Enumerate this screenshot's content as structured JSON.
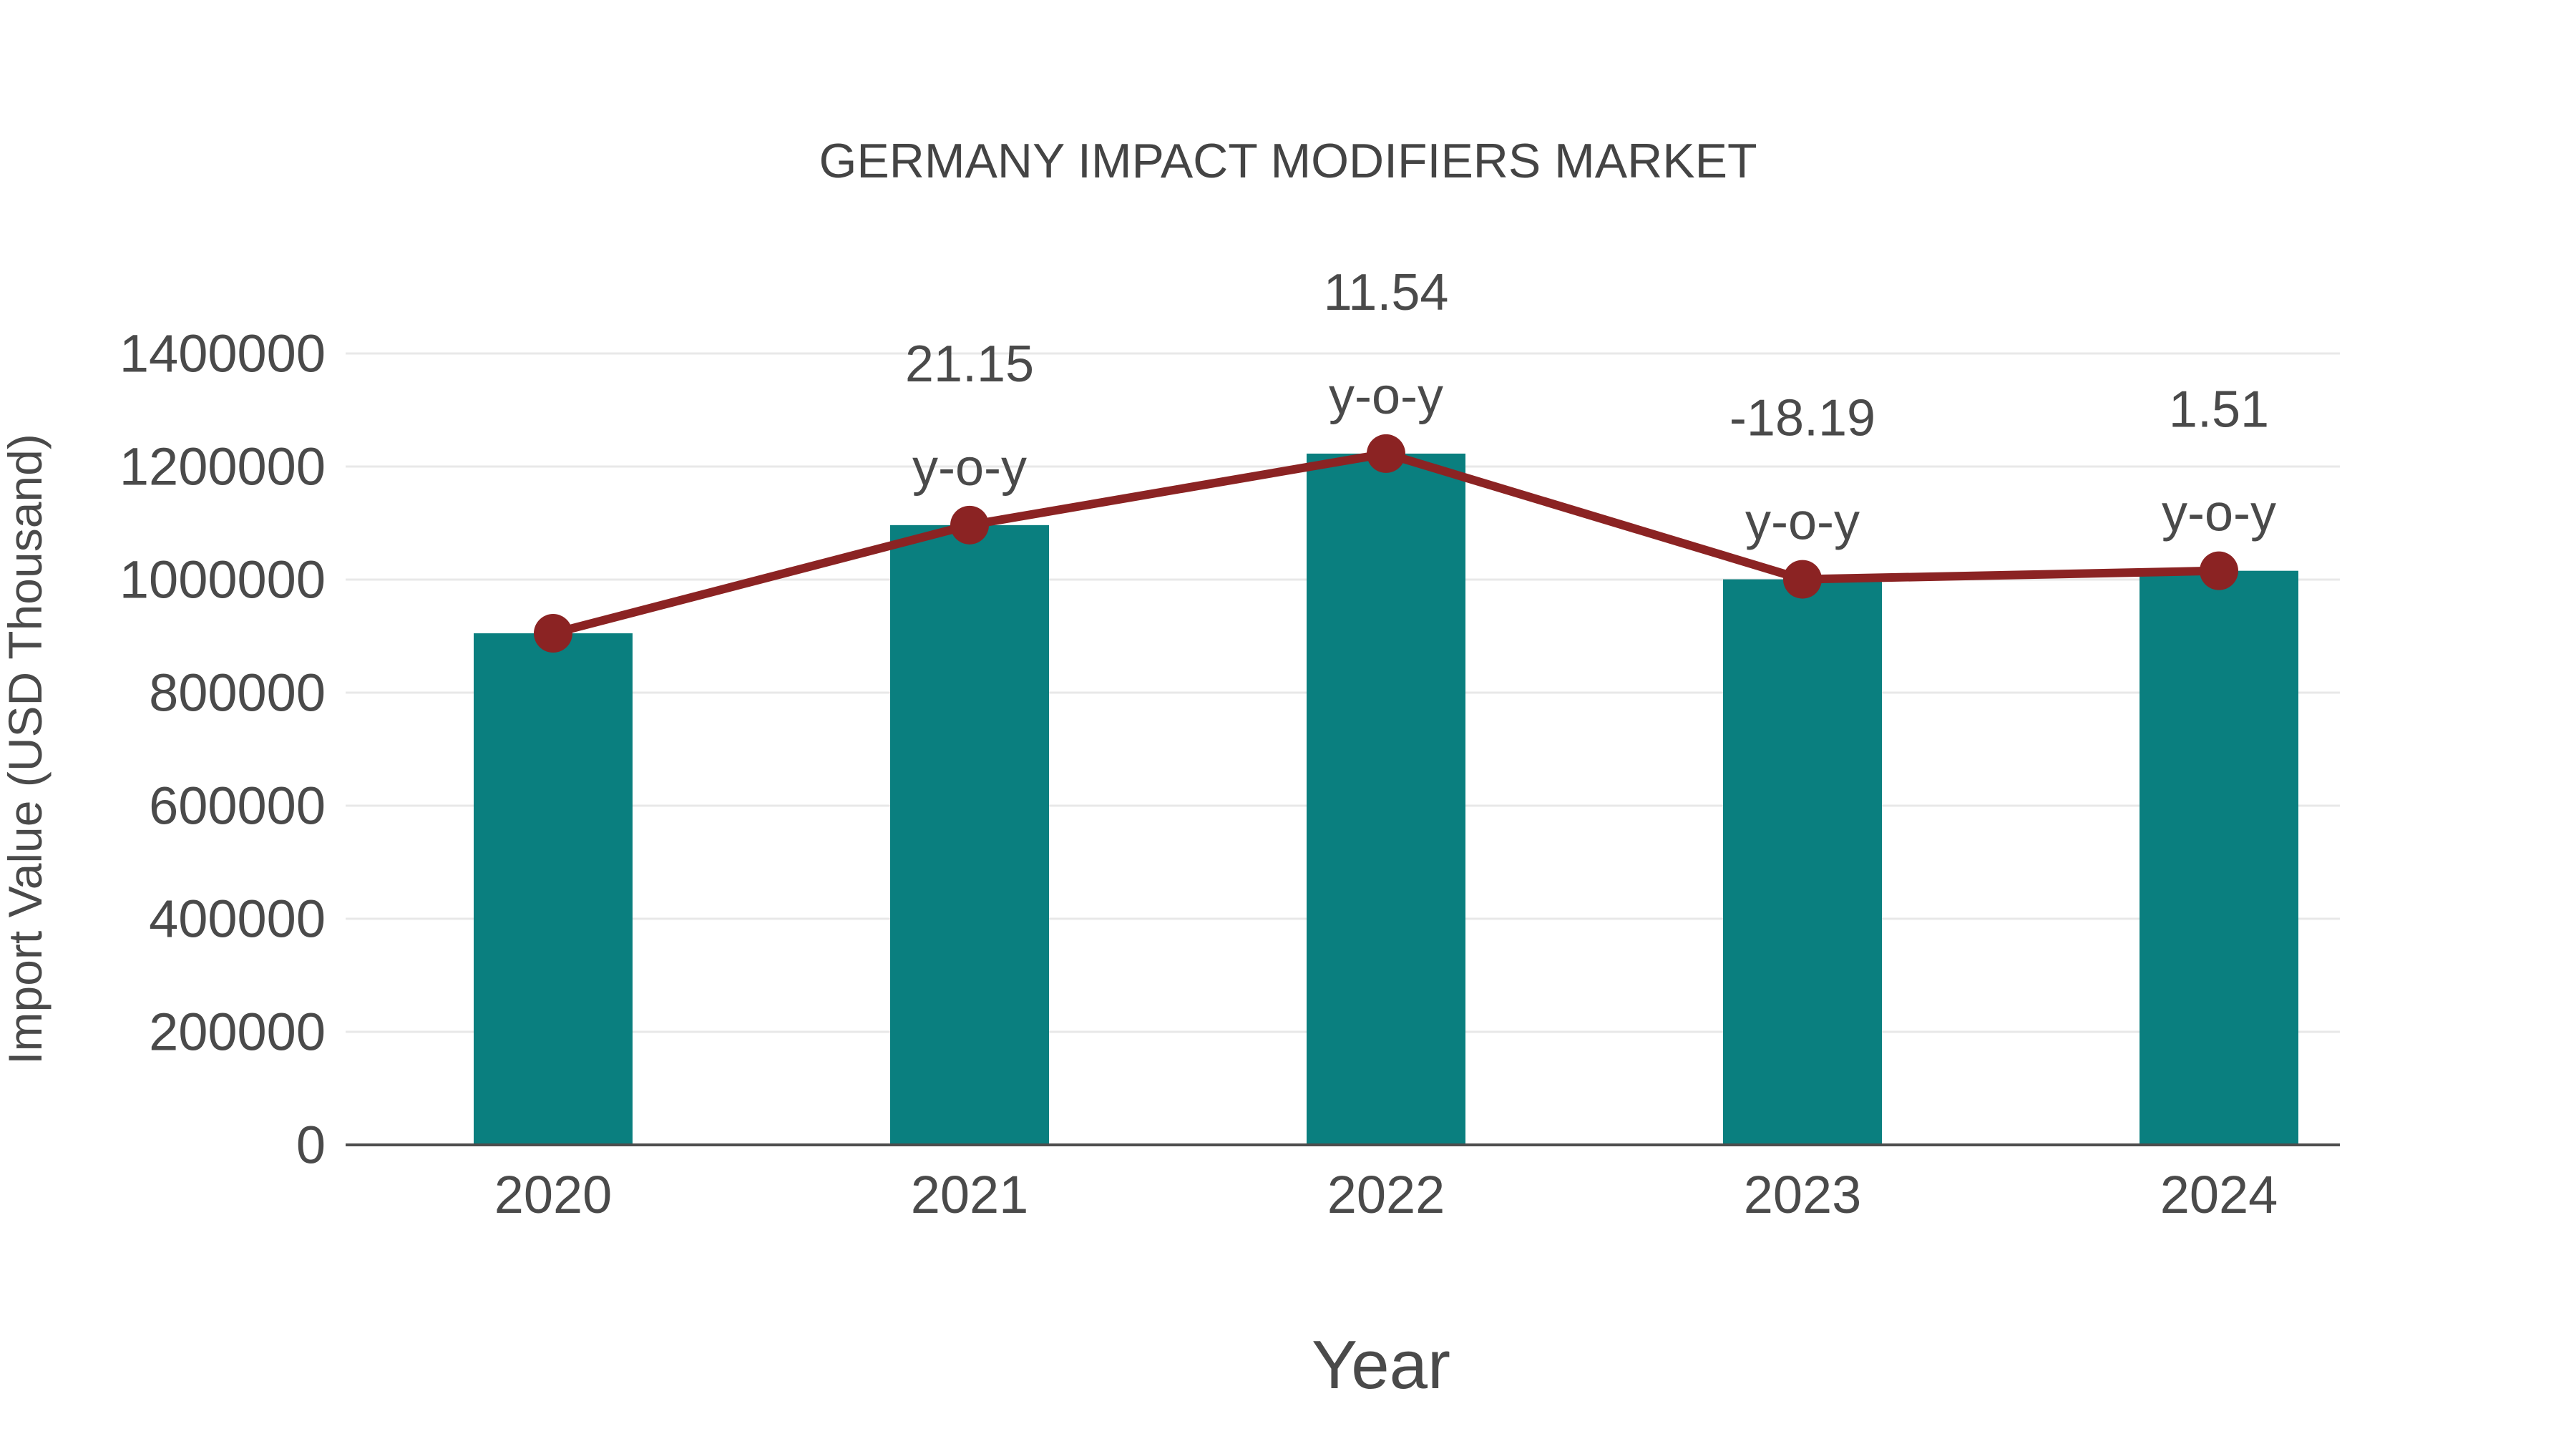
{
  "title": "GERMANY IMPACT MODIFIERS MARKET",
  "chart_data": {
    "type": "bar",
    "subtype": "bar-with-line-overlay",
    "categories": [
      "2020",
      "2021",
      "2022",
      "2023",
      "2024"
    ],
    "series": [
      {
        "name": "Import Value (USD Thousand)",
        "type": "bar",
        "values": [
          905000,
          1096400,
          1222900,
          1000500,
          1015600
        ]
      },
      {
        "name": "y-o-y change (%)",
        "type": "line",
        "values": [
          null,
          21.15,
          11.54,
          -18.19,
          1.51
        ]
      }
    ],
    "annotations": [
      {
        "category": "2021",
        "value_text": "21.15",
        "suffix_text": "y-o-y"
      },
      {
        "category": "2022",
        "value_text": "11.54",
        "suffix_text": "y-o-y"
      },
      {
        "category": "2023",
        "value_text": "-18.19",
        "suffix_text": "y-o-y"
      },
      {
        "category": "2024",
        "value_text": "1.51",
        "suffix_text": "y-o-y"
      }
    ],
    "title": "GERMANY IMPACT MODIFIERS MARKET",
    "xlabel": "Year",
    "ylabel": "Import Value (USD Thousand)",
    "ylim": [
      0,
      1400000
    ],
    "ytick_step": 200000,
    "yticks": [
      0,
      200000,
      400000,
      600000,
      800000,
      1000000,
      1200000,
      1400000
    ],
    "grid": true,
    "legend_position": "none",
    "colors": {
      "bar": "#0a7f7f",
      "line": "#8b2323",
      "marker": "#8b2323",
      "text": "#4a4a4a",
      "title_text": "#444444",
      "grid": "#e8e8e8",
      "axis": "#4d4d4d",
      "background": "#ffffff"
    }
  }
}
